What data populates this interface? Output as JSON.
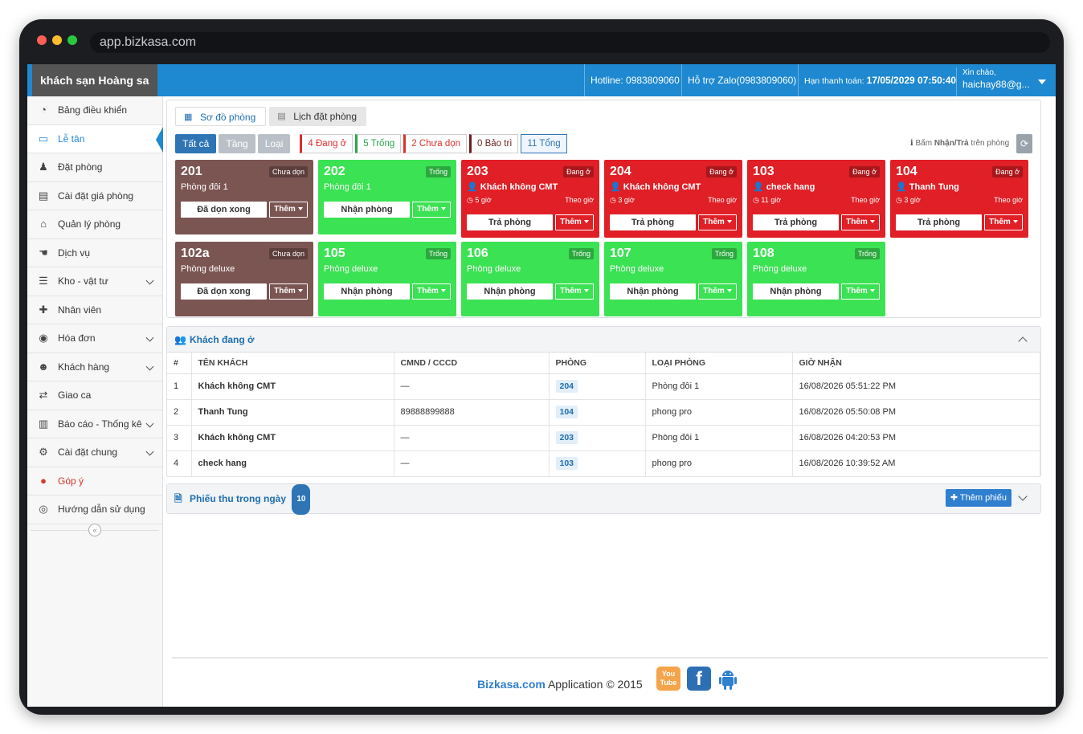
{
  "browser": {
    "url": "app.bizkasa.com"
  },
  "header": {
    "brand": "khách sạn Hoàng sa",
    "hotline": "Hotline: 0983809060",
    "support": "Hỗ trợ Zalo(0983809060)",
    "expiry_label": "Hạn thanh toán:",
    "expiry_value": "17/05/2029 07:50:40",
    "greeting": "Xin chào,",
    "user": "haichay88@g..."
  },
  "sidebar": {
    "items": [
      {
        "label": "Bảng điều khiển",
        "icon": "dashboard-icon"
      },
      {
        "label": "Lễ tân",
        "icon": "laptop-icon"
      },
      {
        "label": "Đặt phòng",
        "icon": "bellboy-icon"
      },
      {
        "label": "Cài đặt giá phòng",
        "icon": "book-icon"
      },
      {
        "label": "Quản lý phòng",
        "icon": "home-icon"
      },
      {
        "label": "Dịch vụ",
        "icon": "service-icon"
      },
      {
        "label": "Kho - vật tư",
        "icon": "warehouse-icon"
      },
      {
        "label": "Nhân viên",
        "icon": "user-plus-icon"
      },
      {
        "label": "Hóa đơn",
        "icon": "money-icon"
      },
      {
        "label": "Khách hàng",
        "icon": "users-icon"
      },
      {
        "label": "Giao ca",
        "icon": "exchange-icon"
      },
      {
        "label": "Báo cáo - Thống kê",
        "icon": "bar-chart-icon"
      },
      {
        "label": "Cài đặt chung",
        "icon": "gears-icon"
      },
      {
        "label": "Góp ý",
        "icon": "comments-icon"
      },
      {
        "label": "Hướng dẫn sử dụng",
        "icon": "lifebuoy-icon"
      }
    ],
    "collapse": "«"
  },
  "tabs": [
    {
      "label": "Sơ đồ phòng"
    },
    {
      "label": "Lịch đặt phòng"
    }
  ],
  "filters": {
    "buttons": [
      "Tất cả",
      "Tầng",
      "Loại"
    ],
    "tags": [
      {
        "label": "4 Đang ở",
        "color": "#e02b2b"
      },
      {
        "label": "5 Trống",
        "color": "#2aa64a"
      },
      {
        "label": "2 Chưa dọn",
        "color": "#d9342b"
      },
      {
        "label": "0 Bảo trì",
        "color": "#6b1d1d"
      },
      {
        "label": "11 Tổng",
        "color": "#2f74b5"
      }
    ],
    "hint_pre": "Bấm",
    "hint_bold": "Nhận/Trả",
    "hint_post": "trên phòng",
    "refresh": "⟳"
  },
  "rooms": [
    {
      "num": "201",
      "status": "Chưa dọn",
      "type": "Phòng đôi 1",
      "action": "Đã dọn xong",
      "more": "Thêm",
      "color": "#7b5552"
    },
    {
      "num": "202",
      "status": "Trống",
      "type": "Phòng đôi 1",
      "action": "Nhận phòng",
      "more": "Thêm",
      "color": "#3be253"
    },
    {
      "num": "203",
      "status": "Đang ở",
      "guest": "Khách không CMT",
      "duration": "5 giờ",
      "mode": "Theo giờ",
      "action": "Trả phòng",
      "more": "Thêm",
      "color": "#e01f26"
    },
    {
      "num": "204",
      "status": "Đang ở",
      "guest": "Khách không CMT",
      "duration": "3 giờ",
      "mode": "Theo giờ",
      "action": "Trả phòng",
      "more": "Thêm",
      "color": "#e01f26"
    },
    {
      "num": "103",
      "status": "Đang ở",
      "guest": "check hang",
      "duration": "11 giờ",
      "mode": "Theo giờ",
      "action": "Trả phòng",
      "more": "Thêm",
      "color": "#e01f26"
    },
    {
      "num": "104",
      "status": "Đang ở",
      "guest": "Thanh Tung",
      "duration": "3 giờ",
      "mode": "Theo giờ",
      "action": "Trả phòng",
      "more": "Thêm",
      "color": "#e01f26"
    },
    {
      "num": "102a",
      "status": "Chưa dọn",
      "type": "Phòng deluxe",
      "action": "Đã dọn xong",
      "more": "Thêm",
      "color": "#7b5552"
    },
    {
      "num": "105",
      "status": "Trống",
      "type": "Phòng deluxe",
      "action": "Nhận phòng",
      "more": "Thêm",
      "color": "#3be253"
    },
    {
      "num": "106",
      "status": "Trống",
      "type": "Phòng deluxe",
      "action": "Nhận phòng",
      "more": "Thêm",
      "color": "#3be253"
    },
    {
      "num": "107",
      "status": "Trống",
      "type": "Phòng deluxe",
      "action": "Nhận phòng",
      "more": "Thêm",
      "color": "#3be253"
    },
    {
      "num": "108",
      "status": "Trống",
      "type": "Phòng deluxe",
      "action": "Nhận phòng",
      "more": "Thêm",
      "color": "#3be253"
    }
  ],
  "guests": {
    "title": "Khách đang ở",
    "columns": [
      "#",
      "TÊN KHÁCH",
      "CMND / CCCD",
      "PHÒNG",
      "LOẠI PHÒNG",
      "GIỜ NHẬN"
    ],
    "rows": [
      [
        "1",
        "Khách không CMT",
        "—",
        "204",
        "Phòng đôi 1",
        "16/08/2026 05:51:22 PM"
      ],
      [
        "2",
        "Thanh Tung",
        "89888899888",
        "104",
        "phong pro",
        "16/08/2026 05:50:08 PM"
      ],
      [
        "3",
        "Khách không CMT",
        "—",
        "203",
        "Phòng đôi 1",
        "16/08/2026 04:20:53 PM"
      ],
      [
        "4",
        "check hang",
        "—",
        "103",
        "phong pro",
        "16/08/2026 10:39:52 AM"
      ]
    ]
  },
  "receipts": {
    "title": "Phiếu thu trong ngày",
    "count": "10",
    "add_label": "Thêm phiếu"
  },
  "footer": {
    "brand": "Bizkasa.com",
    "text": " Application © 2015",
    "youtube": "You Tube",
    "facebook": "f",
    "android": "android"
  }
}
